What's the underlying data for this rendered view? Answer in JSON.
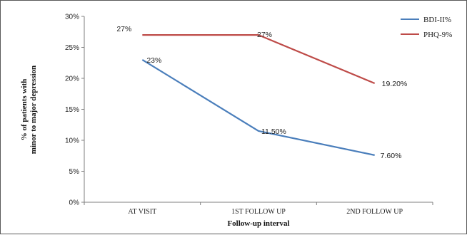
{
  "chart_data": {
    "type": "line",
    "categories": [
      "AT VISIT",
      "1ST FOLLOW UP",
      "2ND FOLLOW UP"
    ],
    "series": [
      {
        "name": "BDI-II%",
        "values": [
          23,
          11.5,
          7.6
        ],
        "labels": [
          "23%",
          "11.50%",
          "7.60%"
        ],
        "color": "#4a7ebb"
      },
      {
        "name": "PHQ-9%",
        "values": [
          27,
          27,
          19.2
        ],
        "labels": [
          "27%",
          "27%",
          "19.20%"
        ],
        "color": "#be4b48"
      }
    ],
    "yticks": [
      "0%",
      "5%",
      "10%",
      "15%",
      "20%",
      "25%",
      "30%"
    ],
    "ylim": [
      0,
      30
    ],
    "xlabel": "Follow-up  interval",
    "ylabel_line1": "% of patients with",
    "ylabel_line2": "minor to major depression",
    "legend_position": "top-right",
    "grid": false
  }
}
